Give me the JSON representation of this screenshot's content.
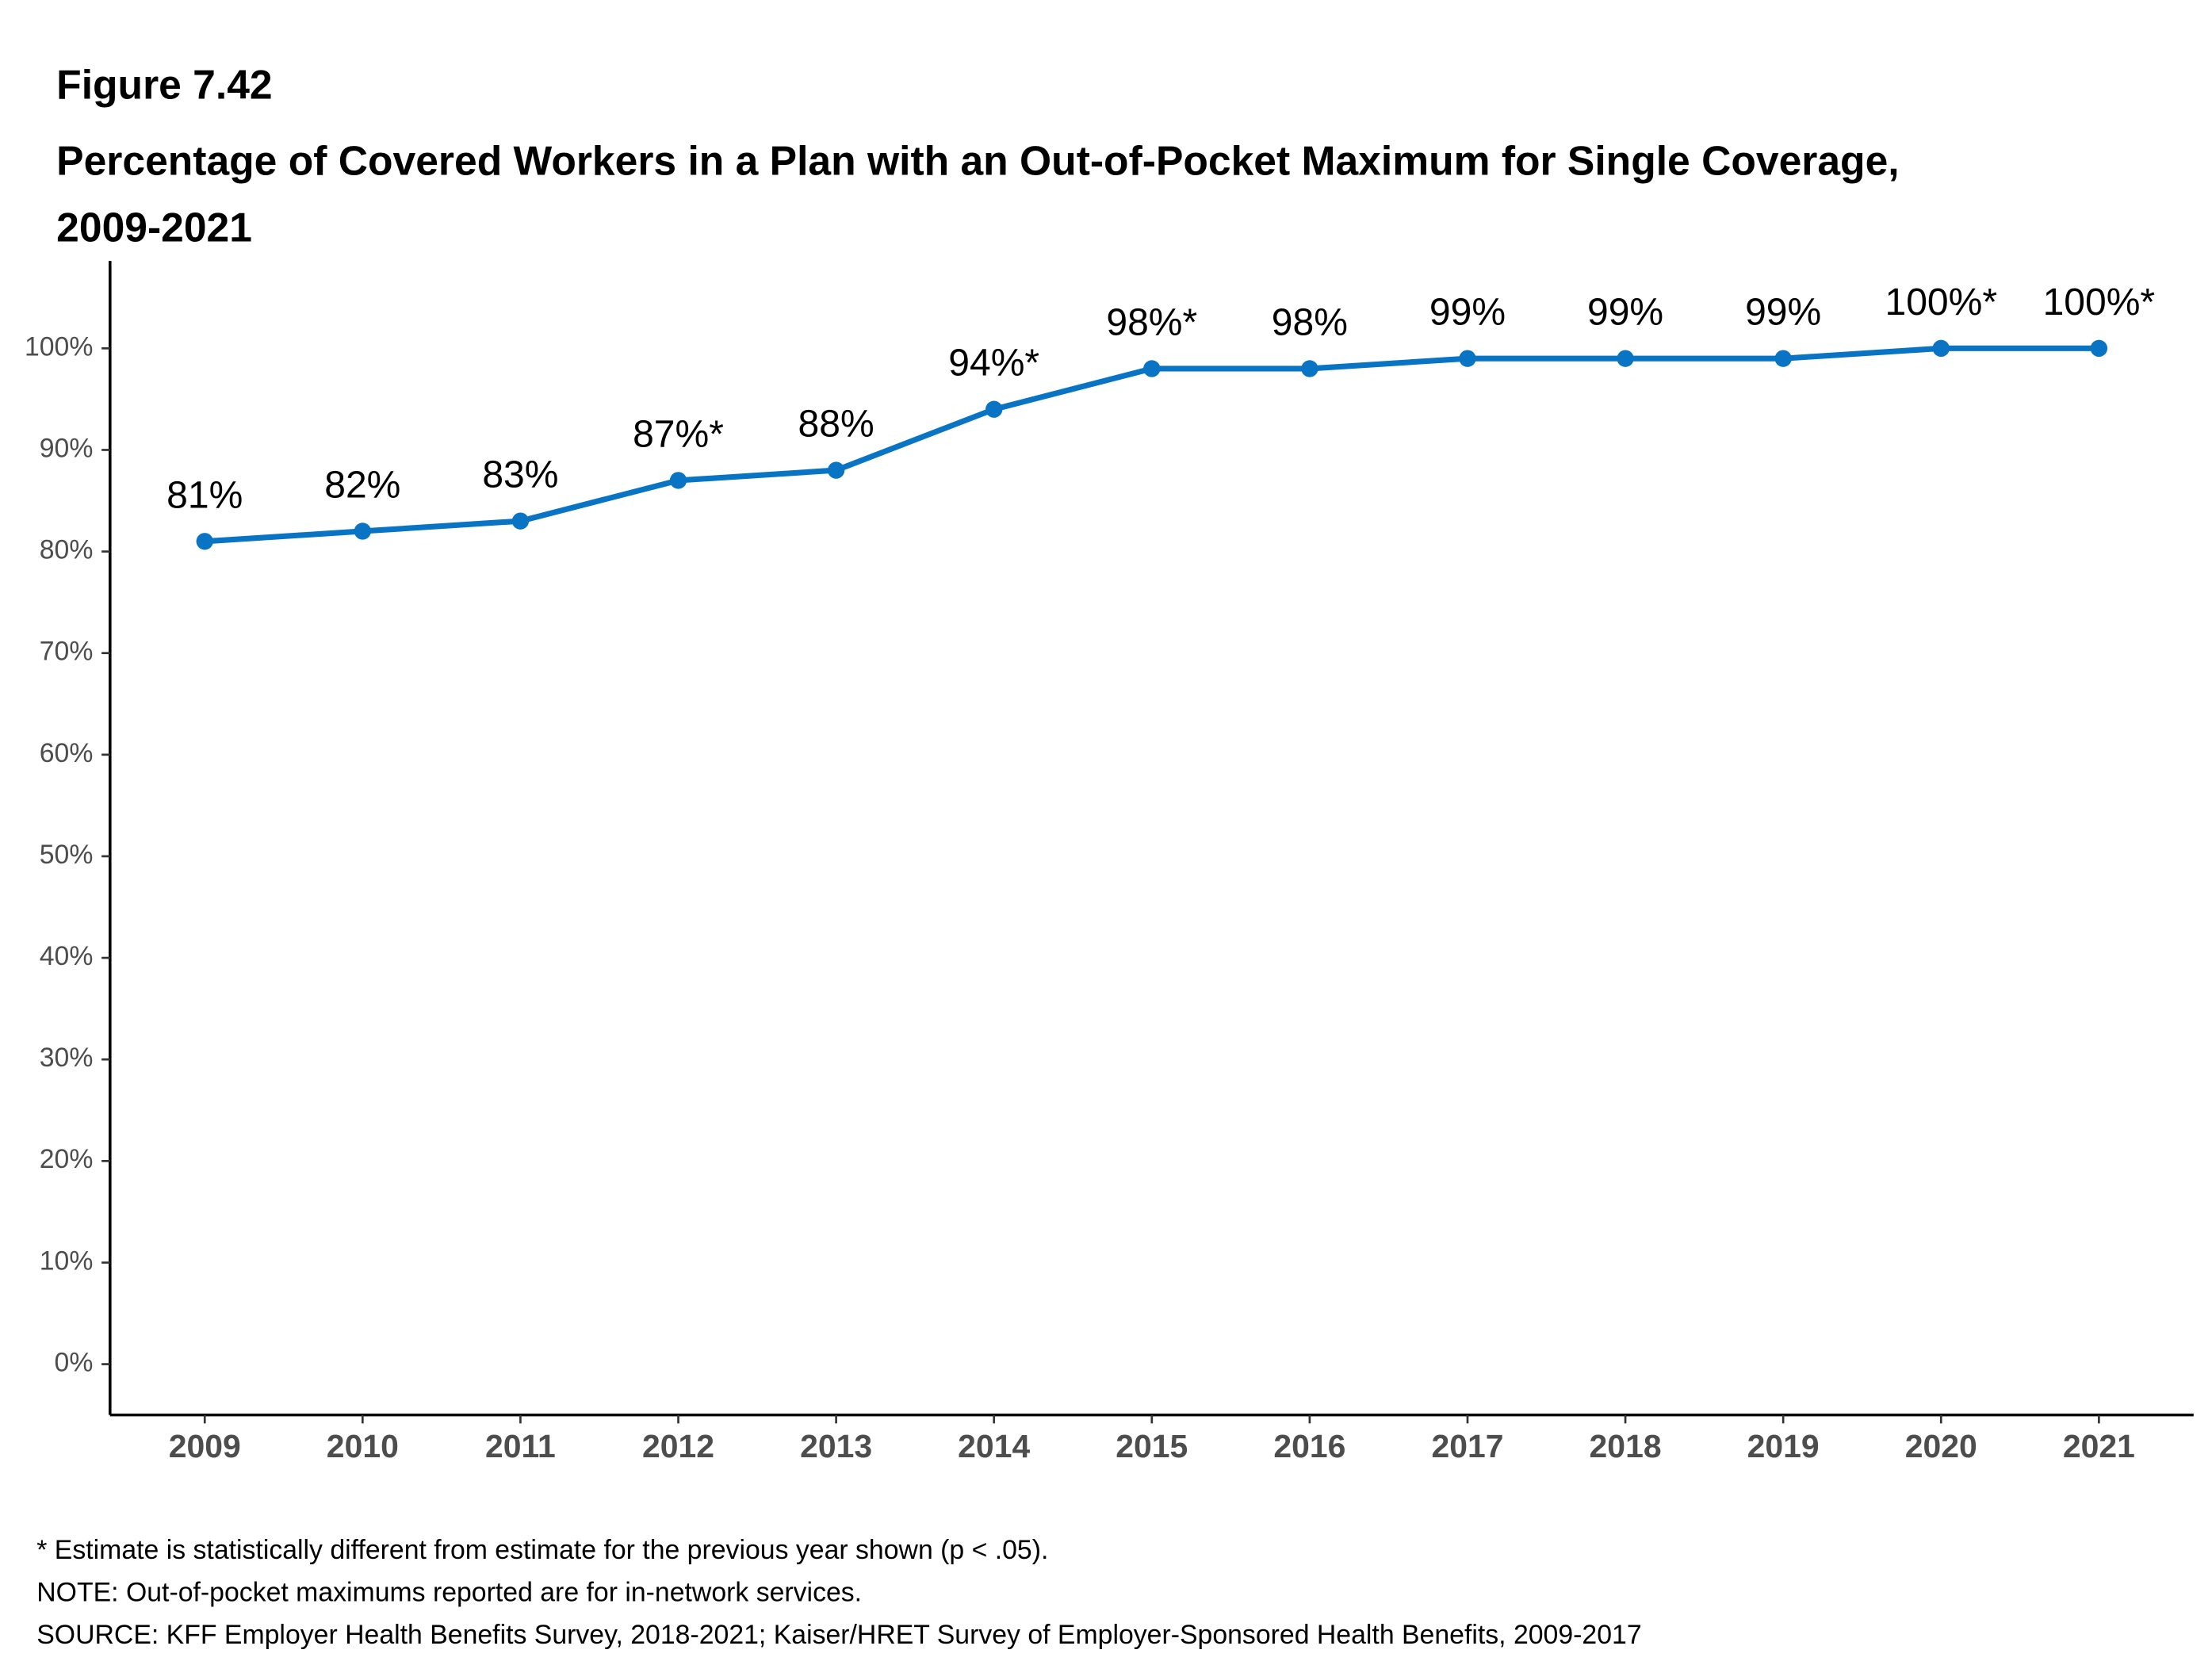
{
  "chart_data": {
    "type": "line",
    "figure_label": "Figure 7.42",
    "title": "Percentage of Covered Workers in a Plan with an Out-of-Pocket Maximum for Single Coverage, 2009-2021",
    "categories": [
      "2009",
      "2010",
      "2011",
      "2012",
      "2013",
      "2014",
      "2015",
      "2016",
      "2017",
      "2018",
      "2019",
      "2020",
      "2021"
    ],
    "series": [
      {
        "color": "#0a74c4",
        "values": [
          81,
          82,
          83,
          87,
          88,
          94,
          98,
          98,
          99,
          99,
          99,
          100,
          100
        ],
        "value_labels": [
          "81%",
          "82%",
          "83%",
          "87%*",
          "88%",
          "94%*",
          "98%*",
          "98%",
          "99%",
          "99%",
          "99%",
          "100%*",
          "100%*"
        ]
      }
    ],
    "ylim": [
      -5,
      108.6
    ],
    "yticks": [
      {
        "value": 0,
        "label": "0%"
      },
      {
        "value": 10,
        "label": "10%"
      },
      {
        "value": 20,
        "label": "20%"
      },
      {
        "value": 30,
        "label": "30%"
      },
      {
        "value": 40,
        "label": "40%"
      },
      {
        "value": 50,
        "label": "50%"
      },
      {
        "value": 60,
        "label": "60%"
      },
      {
        "value": 70,
        "label": "70%"
      },
      {
        "value": 80,
        "label": "80%"
      },
      {
        "value": 90,
        "label": "90%"
      },
      {
        "value": 100,
        "label": "100%"
      }
    ],
    "grid": false,
    "notes": [
      "* Estimate is statistically different from estimate for the previous year shown (p < .05).",
      "NOTE: Out-of-pocket maximums reported are for in-network services.",
      "SOURCE: KFF Employer Health Benefits Survey, 2018-2021; Kaiser/HRET Survey of Employer-Sponsored Health Benefits, 2009-2017"
    ]
  }
}
